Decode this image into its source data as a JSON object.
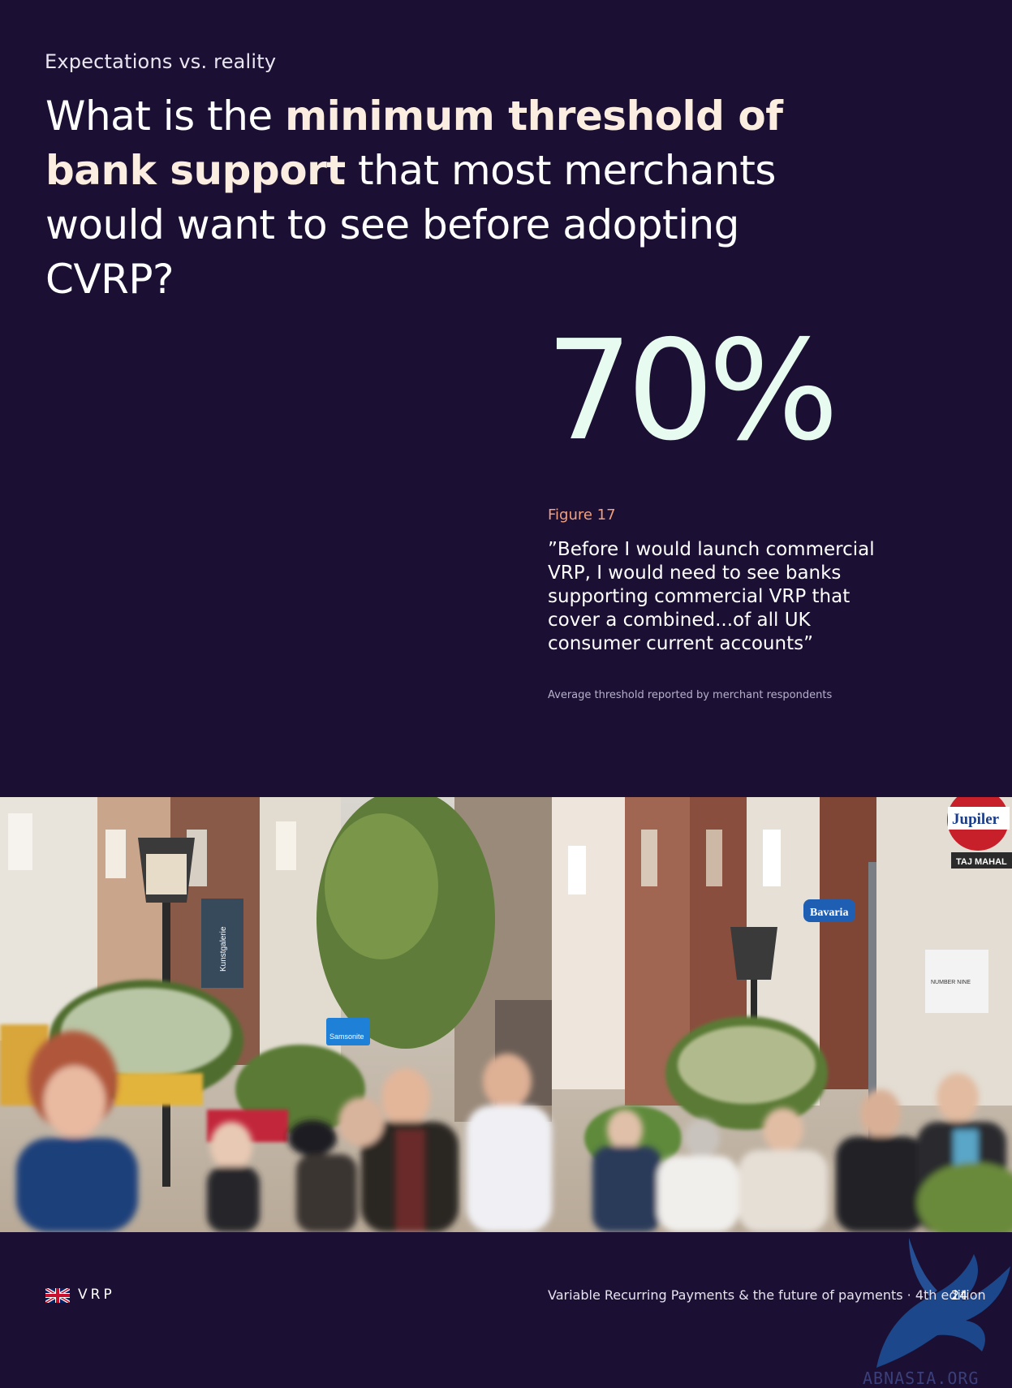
{
  "section": {
    "eyebrow": "Expectations vs. reality"
  },
  "headline": {
    "part1": "What is the ",
    "bold": "minimum threshold of bank support",
    "part2": " that most merchants would want to see before adopting CVRP?"
  },
  "stat": {
    "value": "70%",
    "figure_label": "Figure 17",
    "quote": "”Before I would launch commercial VRP, I would need to see banks supporting commercial VRP that cover a combined...of all UK consumer current accounts”",
    "footnote": "Average threshold reported by merchant respondents"
  },
  "photo": {
    "signs": {
      "jupiler": "Jupiler",
      "taj_mahal": "TAJ MAHAL",
      "bavaria": "Bavaria",
      "samsonite": "Samsonite",
      "kunstgalerie": "Kunstgalerie",
      "number_nine": "NUMBER NINE"
    }
  },
  "footer": {
    "brand": "VRP",
    "title": "Variable Recurring Payments & the future of payments · 4th edition",
    "page_number": "24"
  },
  "watermark": {
    "text": "ABNASIA.ORG"
  },
  "colors": {
    "background": "#1b1033",
    "headline_bold": "#fbeee0",
    "stat": "#e8fbf0",
    "figure_label": "#f2a07e"
  }
}
